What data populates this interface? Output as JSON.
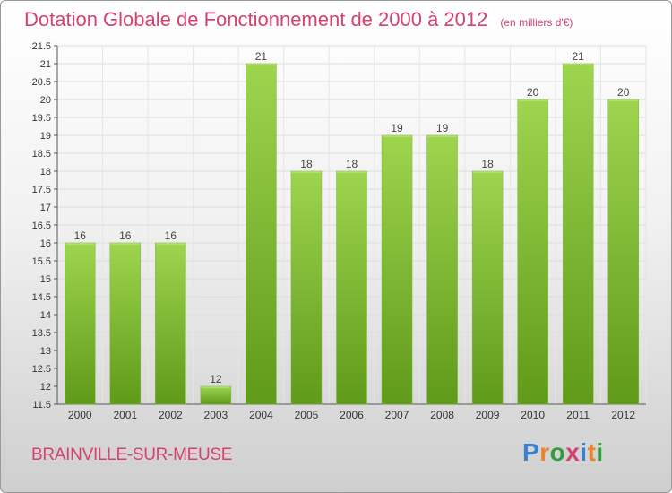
{
  "title": "Dotation Globale de Fonctionnement de 2000 à 2012",
  "unit": "(en milliers d'€)",
  "commune": "BRAINVILLE-SUR-MEUSE",
  "logo": {
    "text": "Proxiti",
    "colors": [
      "#3a7fd0",
      "#e8872a",
      "#2f9e3b",
      "#d6426e",
      "#3a7fd0",
      "#e8872a",
      "#2f9e3b"
    ]
  },
  "colors": {
    "bar_top": "#9ed54f",
    "bar_bottom": "#5f9a18",
    "title": "#d6426e"
  },
  "chart_data": {
    "type": "bar",
    "categories": [
      "2000",
      "2001",
      "2002",
      "2003",
      "2004",
      "2005",
      "2006",
      "2007",
      "2008",
      "2009",
      "2010",
      "2011",
      "2012"
    ],
    "values": [
      16,
      16,
      16,
      12,
      21,
      18,
      18,
      19,
      19,
      18,
      20,
      21,
      20
    ],
    "ylim": [
      11.5,
      21.5
    ],
    "yticks": [
      11.5,
      12,
      12.5,
      13,
      13.5,
      14,
      14.5,
      15,
      15.5,
      16,
      16.5,
      17,
      17.5,
      18,
      18.5,
      19,
      19.5,
      20,
      20.5,
      21,
      21.5
    ],
    "grid": true,
    "data_labels": true
  }
}
